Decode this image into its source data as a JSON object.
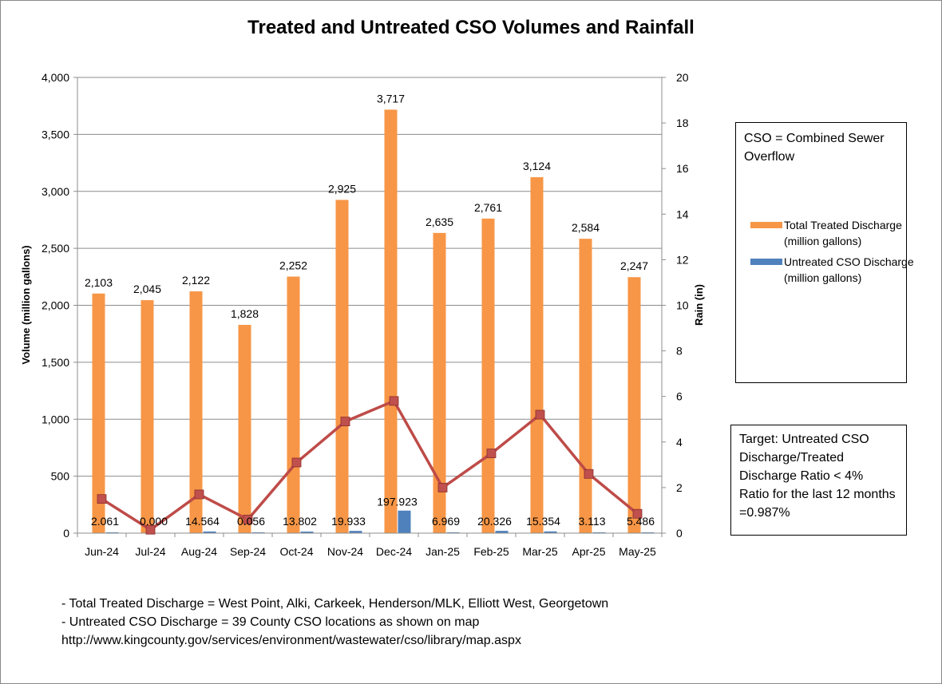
{
  "chart_data": {
    "type": "bar+line",
    "title": "Treated and Untreated CSO Volumes and Rainfall",
    "categories": [
      "Jun-24",
      "Jul-24",
      "Aug-24",
      "Sep-24",
      "Oct-24",
      "Nov-24",
      "Dec-24",
      "Jan-25",
      "Feb-25",
      "Mar-25",
      "Apr-25",
      "May-25"
    ],
    "series": [
      {
        "name": "Total Treated Discharge (million gallons)",
        "kind": "bar",
        "axis": "left",
        "color": "#F79646",
        "values": [
          2103,
          2045,
          2122,
          1828,
          2252,
          2925,
          3717,
          2635,
          2761,
          3124,
          2584,
          2247
        ],
        "labels": [
          "2,103",
          "2,045",
          "2,122",
          "1,828",
          "2,252",
          "2,925",
          "3,717",
          "2,635",
          "2,761",
          "3,124",
          "2,584",
          "2,247"
        ]
      },
      {
        "name": "Untreated CSO Discharge (million gallons)",
        "kind": "bar",
        "axis": "left",
        "color": "#4F81BD",
        "values": [
          2.061,
          0.0,
          14.564,
          0.056,
          13.802,
          19.933,
          197.923,
          6.969,
          20.326,
          15.354,
          3.113,
          5.486
        ],
        "labels": [
          "2.061",
          "0.000",
          "14.564",
          "0.056",
          "13.802",
          "19.933",
          "197.923",
          "6.969",
          "20.326",
          "15.354",
          "3.113",
          "5.486"
        ]
      },
      {
        "name": "Rain (in)",
        "kind": "line",
        "axis": "right",
        "color": "#BE4B48",
        "marker_color": "#C0504D",
        "values": [
          1.5,
          0.15,
          1.7,
          0.6,
          3.1,
          4.9,
          5.8,
          2.0,
          3.5,
          5.2,
          2.6,
          0.85
        ]
      }
    ],
    "y_left": {
      "label": "Volume (million gallons)",
      "min": 0,
      "max": 4000,
      "ticks": [
        {
          "value": 0,
          "label": "0"
        },
        {
          "value": 500,
          "label": "500"
        },
        {
          "value": 1000,
          "label": "1,000"
        },
        {
          "value": 1500,
          "label": "1,500"
        },
        {
          "value": 2000,
          "label": "2,000"
        },
        {
          "value": 2500,
          "label": "2,500"
        },
        {
          "value": 3000,
          "label": "3,000"
        },
        {
          "value": 3500,
          "label": "3,500"
        },
        {
          "value": 4000,
          "label": "4,000"
        }
      ]
    },
    "y_right": {
      "label": "Rain  (in)",
      "min": 0,
      "max": 20,
      "ticks": [
        {
          "value": 0,
          "label": "0"
        },
        {
          "value": 2,
          "label": "2"
        },
        {
          "value": 4,
          "label": "4"
        },
        {
          "value": 6,
          "label": "6"
        },
        {
          "value": 8,
          "label": "8"
        },
        {
          "value": 10,
          "label": "10"
        },
        {
          "value": 12,
          "label": "12"
        },
        {
          "value": 14,
          "label": "14"
        },
        {
          "value": 16,
          "label": "16"
        },
        {
          "value": 18,
          "label": "18"
        },
        {
          "value": 20,
          "label": "20"
        }
      ]
    },
    "grid": true
  },
  "legend": {
    "note": "CSO = Combined Sewer Overflow",
    "entries": [
      {
        "label": "Total Treated Discharge (million gallons)",
        "color": "#F79646"
      },
      {
        "label": "Untreated CSO Discharge (million gallons)",
        "color": "#4F81BD"
      }
    ]
  },
  "target_box": {
    "line1": "Target: Untreated CSO Discharge/Treated Discharge Ratio < 4%",
    "line2": "Ratio for the last 12 months =0.987%"
  },
  "footnotes": {
    "line1": "- Total Treated Discharge = West Point, Alki, Carkeek, Henderson/MLK, Elliott West, Georgetown",
    "line2": "- Untreated CSO Discharge = 39  County CSO locations as shown on map",
    "line3": "http://www.kingcounty.gov/services/environment/wastewater/cso/library/map.aspx"
  }
}
